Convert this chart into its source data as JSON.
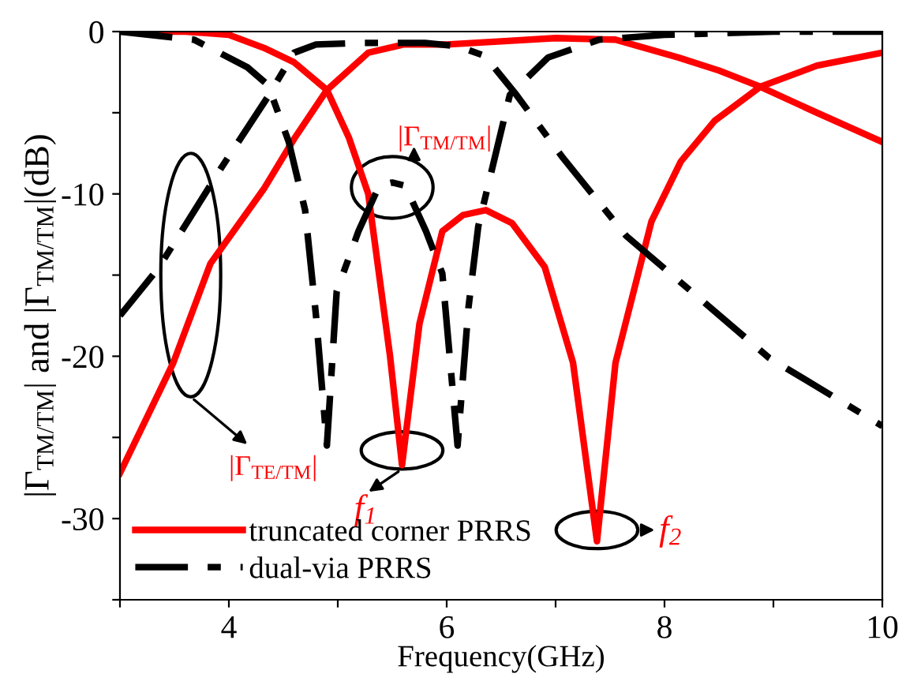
{
  "chart_data": {
    "type": "line",
    "xlabel": "Frequency(GHz)",
    "ylabel": "|Γ$_{TM/TM}$| and |Γ$_{TM/TM}$|(dB)",
    "xlim": [
      3,
      10
    ],
    "ylim": [
      -35,
      0
    ],
    "xticks": [
      {
        "value": 3,
        "label": null
      },
      4,
      {
        "value": 5,
        "label": null
      },
      6,
      {
        "value": 7,
        "label": null
      },
      8,
      {
        "value": 9,
        "label": null
      },
      10
    ],
    "yticks": [
      {
        "value": -35,
        "label": null
      },
      -30,
      {
        "value": -25,
        "label": null
      },
      -20,
      {
        "value": -15,
        "label": null
      },
      -10,
      {
        "value": -5,
        "label": null
      },
      0
    ],
    "grid": false,
    "legend": "bottom left",
    "marker": "none",
    "series": [
      {
        "name": "truncated corner PRRS",
        "color": "#ff0000",
        "line_style": "solid",
        "x": [
          3,
          3.6,
          4.0,
          4.32,
          4.6,
          4.9,
          5.1,
          5.28,
          5.48,
          5.59,
          5.75,
          5.96,
          6.15,
          6.36,
          6.6,
          6.9,
          7.16,
          7.38,
          7.55,
          7.88,
          8.15,
          8.46,
          8.88,
          9.4,
          10
        ],
        "values": [
          0,
          0,
          -0.2,
          -1,
          -1.9,
          -3.6,
          -6.5,
          -10,
          -20,
          -26.7,
          -18,
          -12.3,
          -11.3,
          -11,
          -11.8,
          -14.5,
          -20.4,
          -31.4,
          -20.4,
          -11.7,
          -8,
          -5.5,
          -3.4,
          -2.1,
          -1.3
        ]
      },
      {
        "color": "#ff0000",
        "line_style": "solid",
        "x": [
          3,
          3.49,
          3.83,
          4.32,
          4.6,
          4.9,
          5.28,
          5.6,
          6.0,
          6.5,
          7.0,
          7.55,
          8.13,
          8.5,
          8.88,
          9.4,
          10
        ],
        "values": [
          -27.2,
          -20.4,
          -14.3,
          -9.7,
          -6.6,
          -3.6,
          -1.3,
          -0.8,
          -0.8,
          -0.6,
          -0.4,
          -0.5,
          -1.6,
          -2.4,
          -3.4,
          -5,
          -6.8
        ]
      },
      {
        "name": "dual-via PRRS",
        "color": "#000000",
        "line_style": "dashdot",
        "x": [
          3,
          3.68,
          4.17,
          4.36,
          4.55,
          4.7,
          4.8,
          4.9,
          4.99,
          5.19,
          5.38,
          5.5,
          5.62,
          5.81,
          5.96,
          6.1,
          6.2,
          6.29,
          6.58,
          6.93,
          7.4,
          8,
          9,
          10
        ],
        "values": [
          0,
          -0.5,
          -2.2,
          -3.3,
          -6.8,
          -11,
          -17.5,
          -25.5,
          -16,
          -12.3,
          -9.5,
          -9.3,
          -9.5,
          -12.3,
          -14.9,
          -25.5,
          -17,
          -12,
          -3.9,
          -1.6,
          -0.5,
          -0.2,
          0,
          0
        ]
      },
      {
        "color": "#000000",
        "line_style": "dashdot",
        "x": [
          3,
          3.35,
          3.93,
          4.36,
          4.6,
          4.8,
          5.2,
          5.8,
          6.1,
          6.35,
          6.64,
          7.07,
          7.65,
          8.28,
          8.96,
          10
        ],
        "values": [
          -17.5,
          -14.6,
          -8.4,
          -4,
          -1.3,
          -0.8,
          -0.7,
          -0.7,
          -0.9,
          -1.5,
          -3.9,
          -7.8,
          -12.6,
          -16.2,
          -20.1,
          -24.3
        ]
      }
    ],
    "annotations": [
      "|Γ$_{TM/TM}$|",
      "|Γ$_{TE/TM}$|",
      {
        "text": "f$_{1}$",
        "x": 5.59,
        "y": -26.7
      },
      {
        "text": "f$_{2}$",
        "x": 7.38,
        "y": -31.4
      }
    ]
  }
}
